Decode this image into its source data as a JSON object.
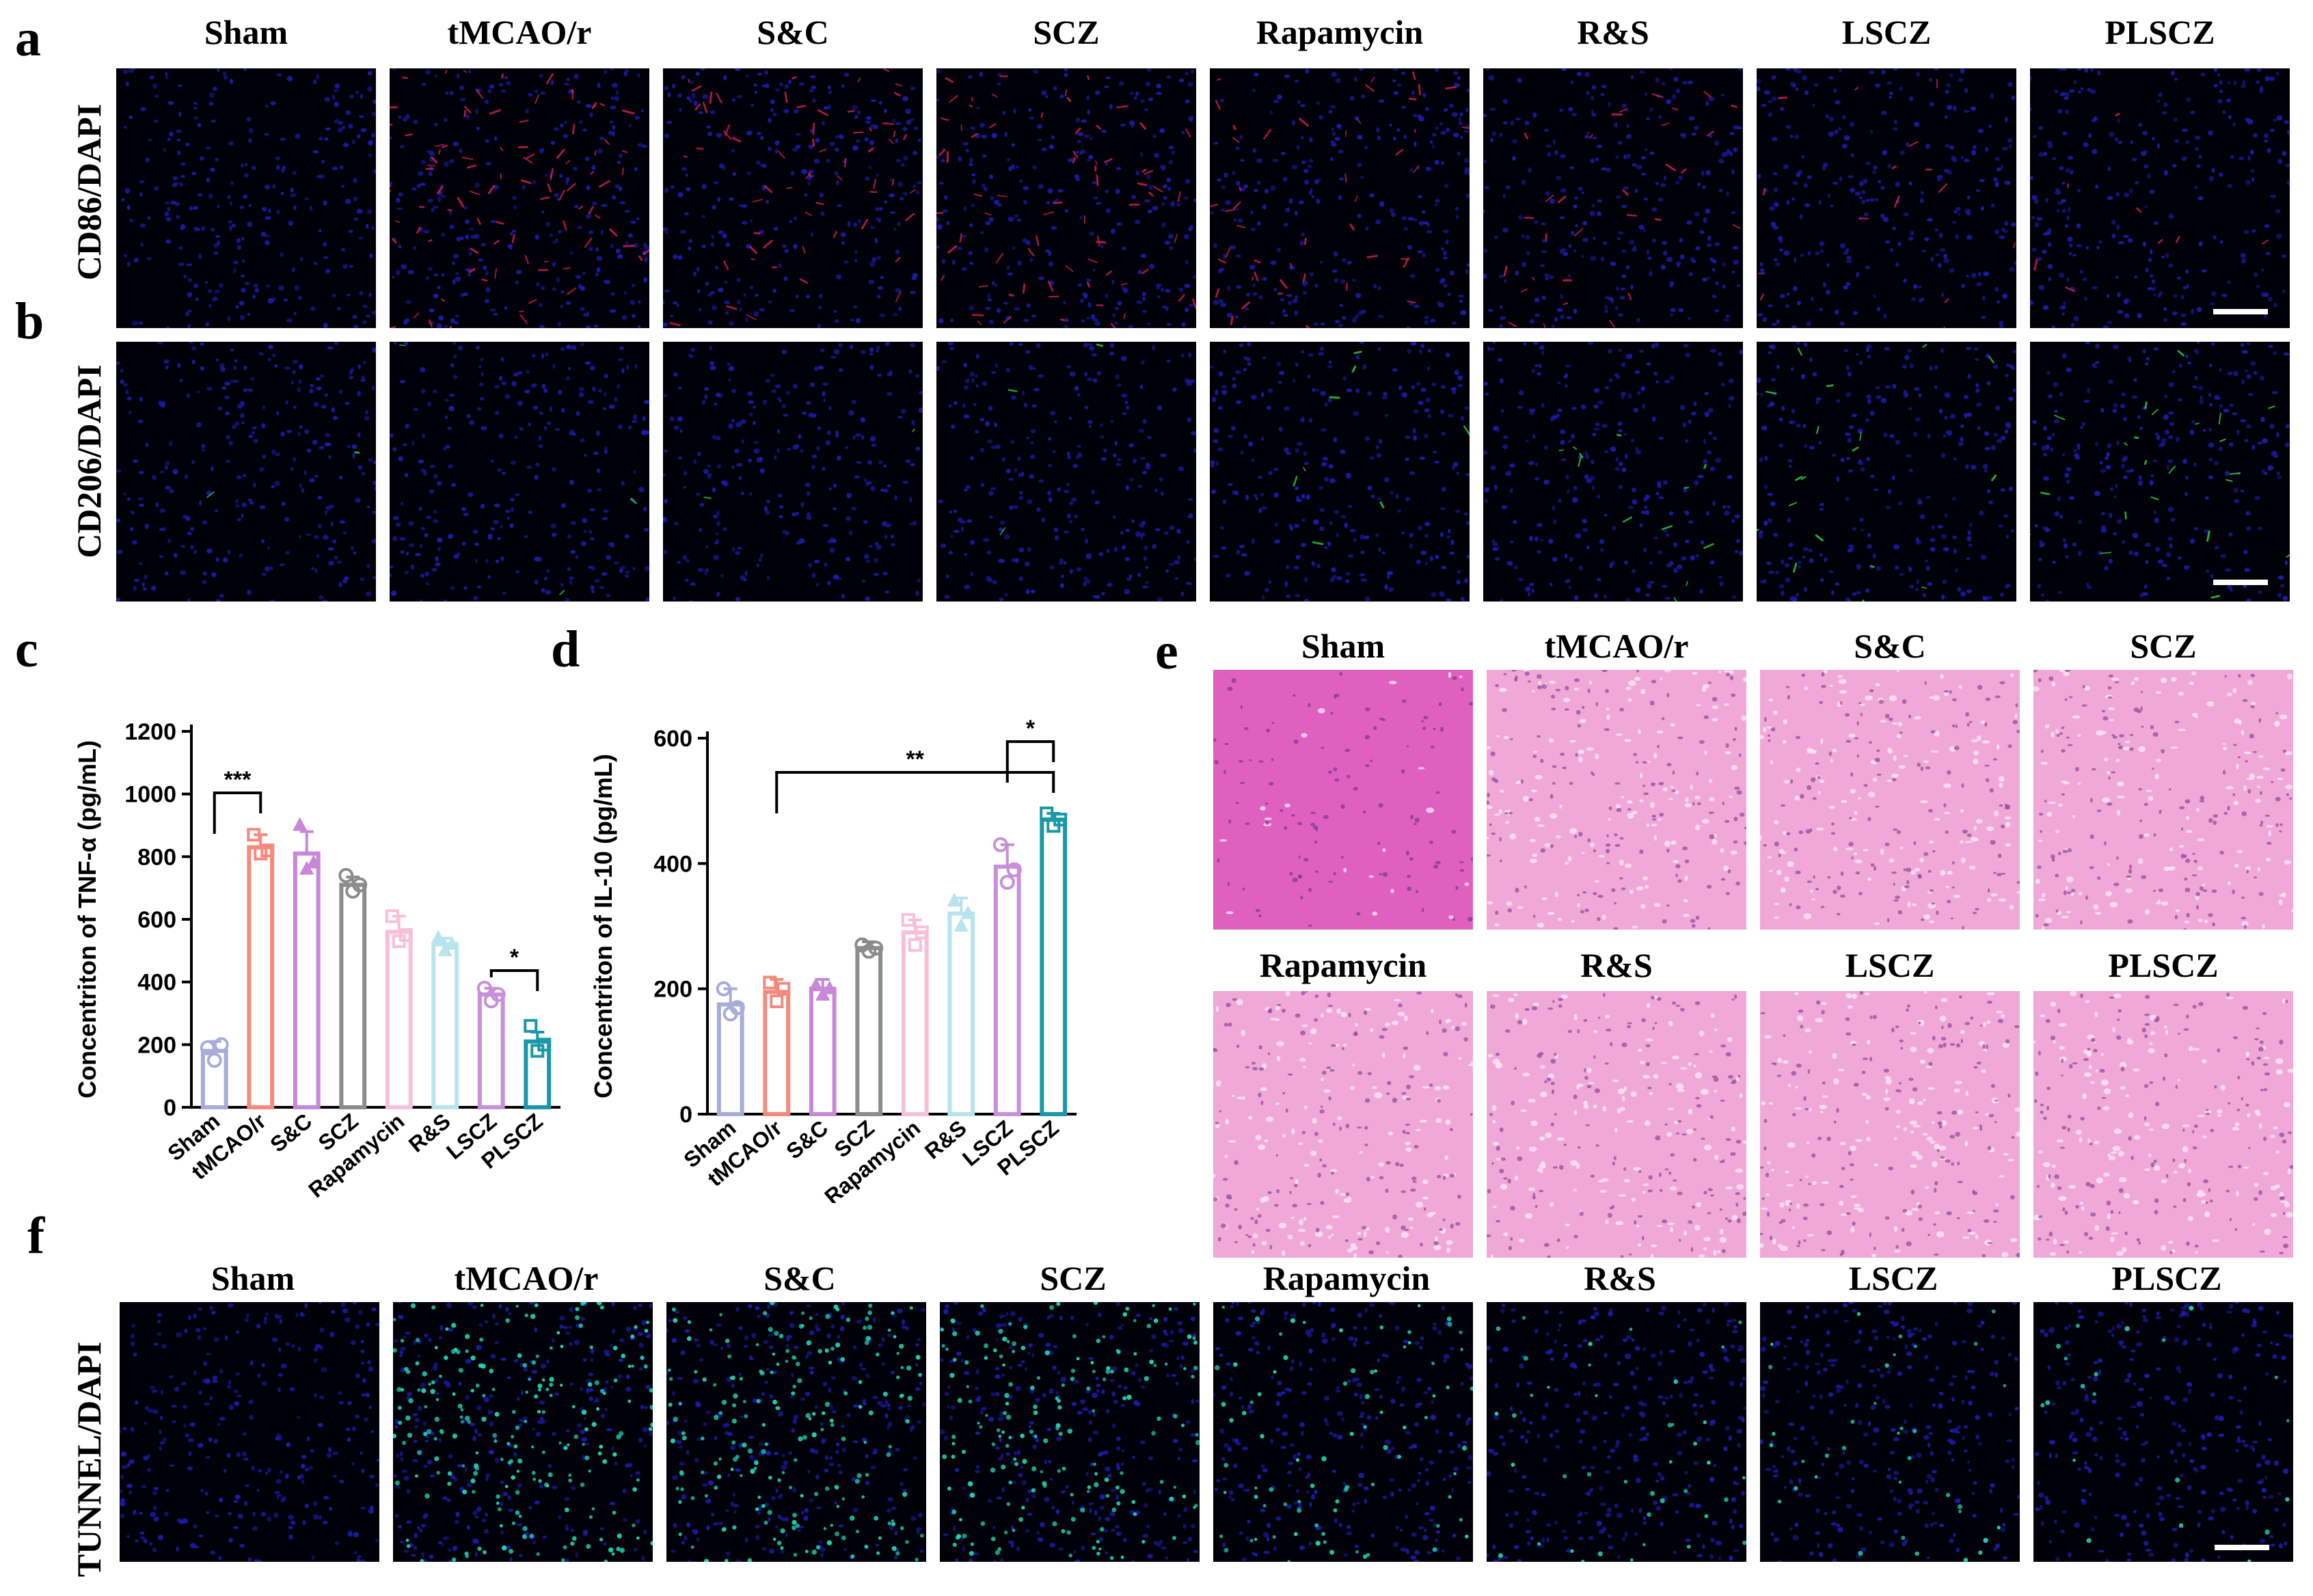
{
  "panels": {
    "a": "a",
    "b": "b",
    "c": "c",
    "d": "d",
    "e": "e",
    "f": "f"
  },
  "groups": [
    "Sham",
    "tMCAO/r",
    "S&C",
    "SCZ",
    "Rapamycin",
    "R&S",
    "LSCZ",
    "PLSCZ"
  ],
  "row_labels": {
    "a": "CD86/DAPI",
    "b": "CD206/DAPI",
    "f": "TUNNEL/DAPI"
  },
  "he_groups_top": [
    "Sham",
    "tMCAO/r",
    "S&C",
    "SCZ"
  ],
  "he_groups_bottom": [
    "Rapamycin",
    "R&S",
    "LSCZ",
    "PLSCZ"
  ],
  "colors": {
    "dapi": "#1a1aa8",
    "cd86": "#e0205a",
    "cd206": "#2ee04a",
    "tunnel": "#20d0b0",
    "he_pink": "#f0a8d8",
    "he_dark": "#e060c0"
  },
  "chart_data": [
    {
      "type": "bar",
      "panel": "c",
      "ylabel": "Concentriton of TNF-α (pg/mL)",
      "ylim": [
        0,
        1200
      ],
      "yticks": [
        0,
        200,
        400,
        600,
        800,
        1000,
        1200
      ],
      "categories": [
        "Sham",
        "tMCAO/r",
        "S&C",
        "SCZ",
        "Rapamycin",
        "R&S",
        "LSCZ",
        "PLSCZ"
      ],
      "values": [
        180,
        830,
        810,
        710,
        560,
        520,
        360,
        210
      ],
      "errors": [
        30,
        40,
        70,
        25,
        50,
        20,
        20,
        30
      ],
      "points": [
        [
          190,
          150,
          200
        ],
        [
          870,
          810,
          820
        ],
        [
          900,
          760,
          780
        ],
        [
          740,
          690,
          710
        ],
        [
          610,
          530,
          550
        ],
        [
          540,
          500,
          520
        ],
        [
          380,
          340,
          360
        ],
        [
          260,
          180,
          200
        ]
      ],
      "bar_colors": [
        "#a8acd8",
        "#f5897c",
        "#c887d8",
        "#8c8c8c",
        "#f8c0d8",
        "#b8e4ee",
        "#c890d8",
        "#1898a8"
      ],
      "significance": [
        {
          "from": 0,
          "to": 1,
          "label": "***"
        },
        {
          "from": 6,
          "to": 7,
          "label": "*"
        }
      ]
    },
    {
      "type": "bar",
      "panel": "d",
      "ylabel": "Concentriton of IL-10 (pg/mL)",
      "ylim": [
        0,
        600
      ],
      "yticks": [
        0,
        200,
        400,
        600
      ],
      "categories": [
        "Sham",
        "tMCAO/r",
        "S&C",
        "SCZ",
        "Rapamycin",
        "R&S",
        "LSCZ",
        "PLSCZ"
      ],
      "values": [
        175,
        195,
        200,
        265,
        290,
        320,
        395,
        470
      ],
      "errors": [
        25,
        20,
        15,
        10,
        20,
        25,
        35,
        10
      ],
      "points": [
        [
          200,
          160,
          170
        ],
        [
          210,
          180,
          200
        ],
        [
          205,
          190,
          200
        ],
        [
          270,
          260,
          265
        ],
        [
          310,
          270,
          290
        ],
        [
          340,
          300,
          320
        ],
        [
          430,
          370,
          390
        ],
        [
          480,
          460,
          470
        ]
      ],
      "bar_colors": [
        "#a8acd8",
        "#f5897c",
        "#c887d8",
        "#8c8c8c",
        "#f8c0d8",
        "#b8e4ee",
        "#c890d8",
        "#1898a8"
      ],
      "significance": [
        {
          "from": 1,
          "to": 7,
          "label": "**"
        },
        {
          "from": 6,
          "to": 7,
          "label": "*"
        }
      ]
    }
  ]
}
